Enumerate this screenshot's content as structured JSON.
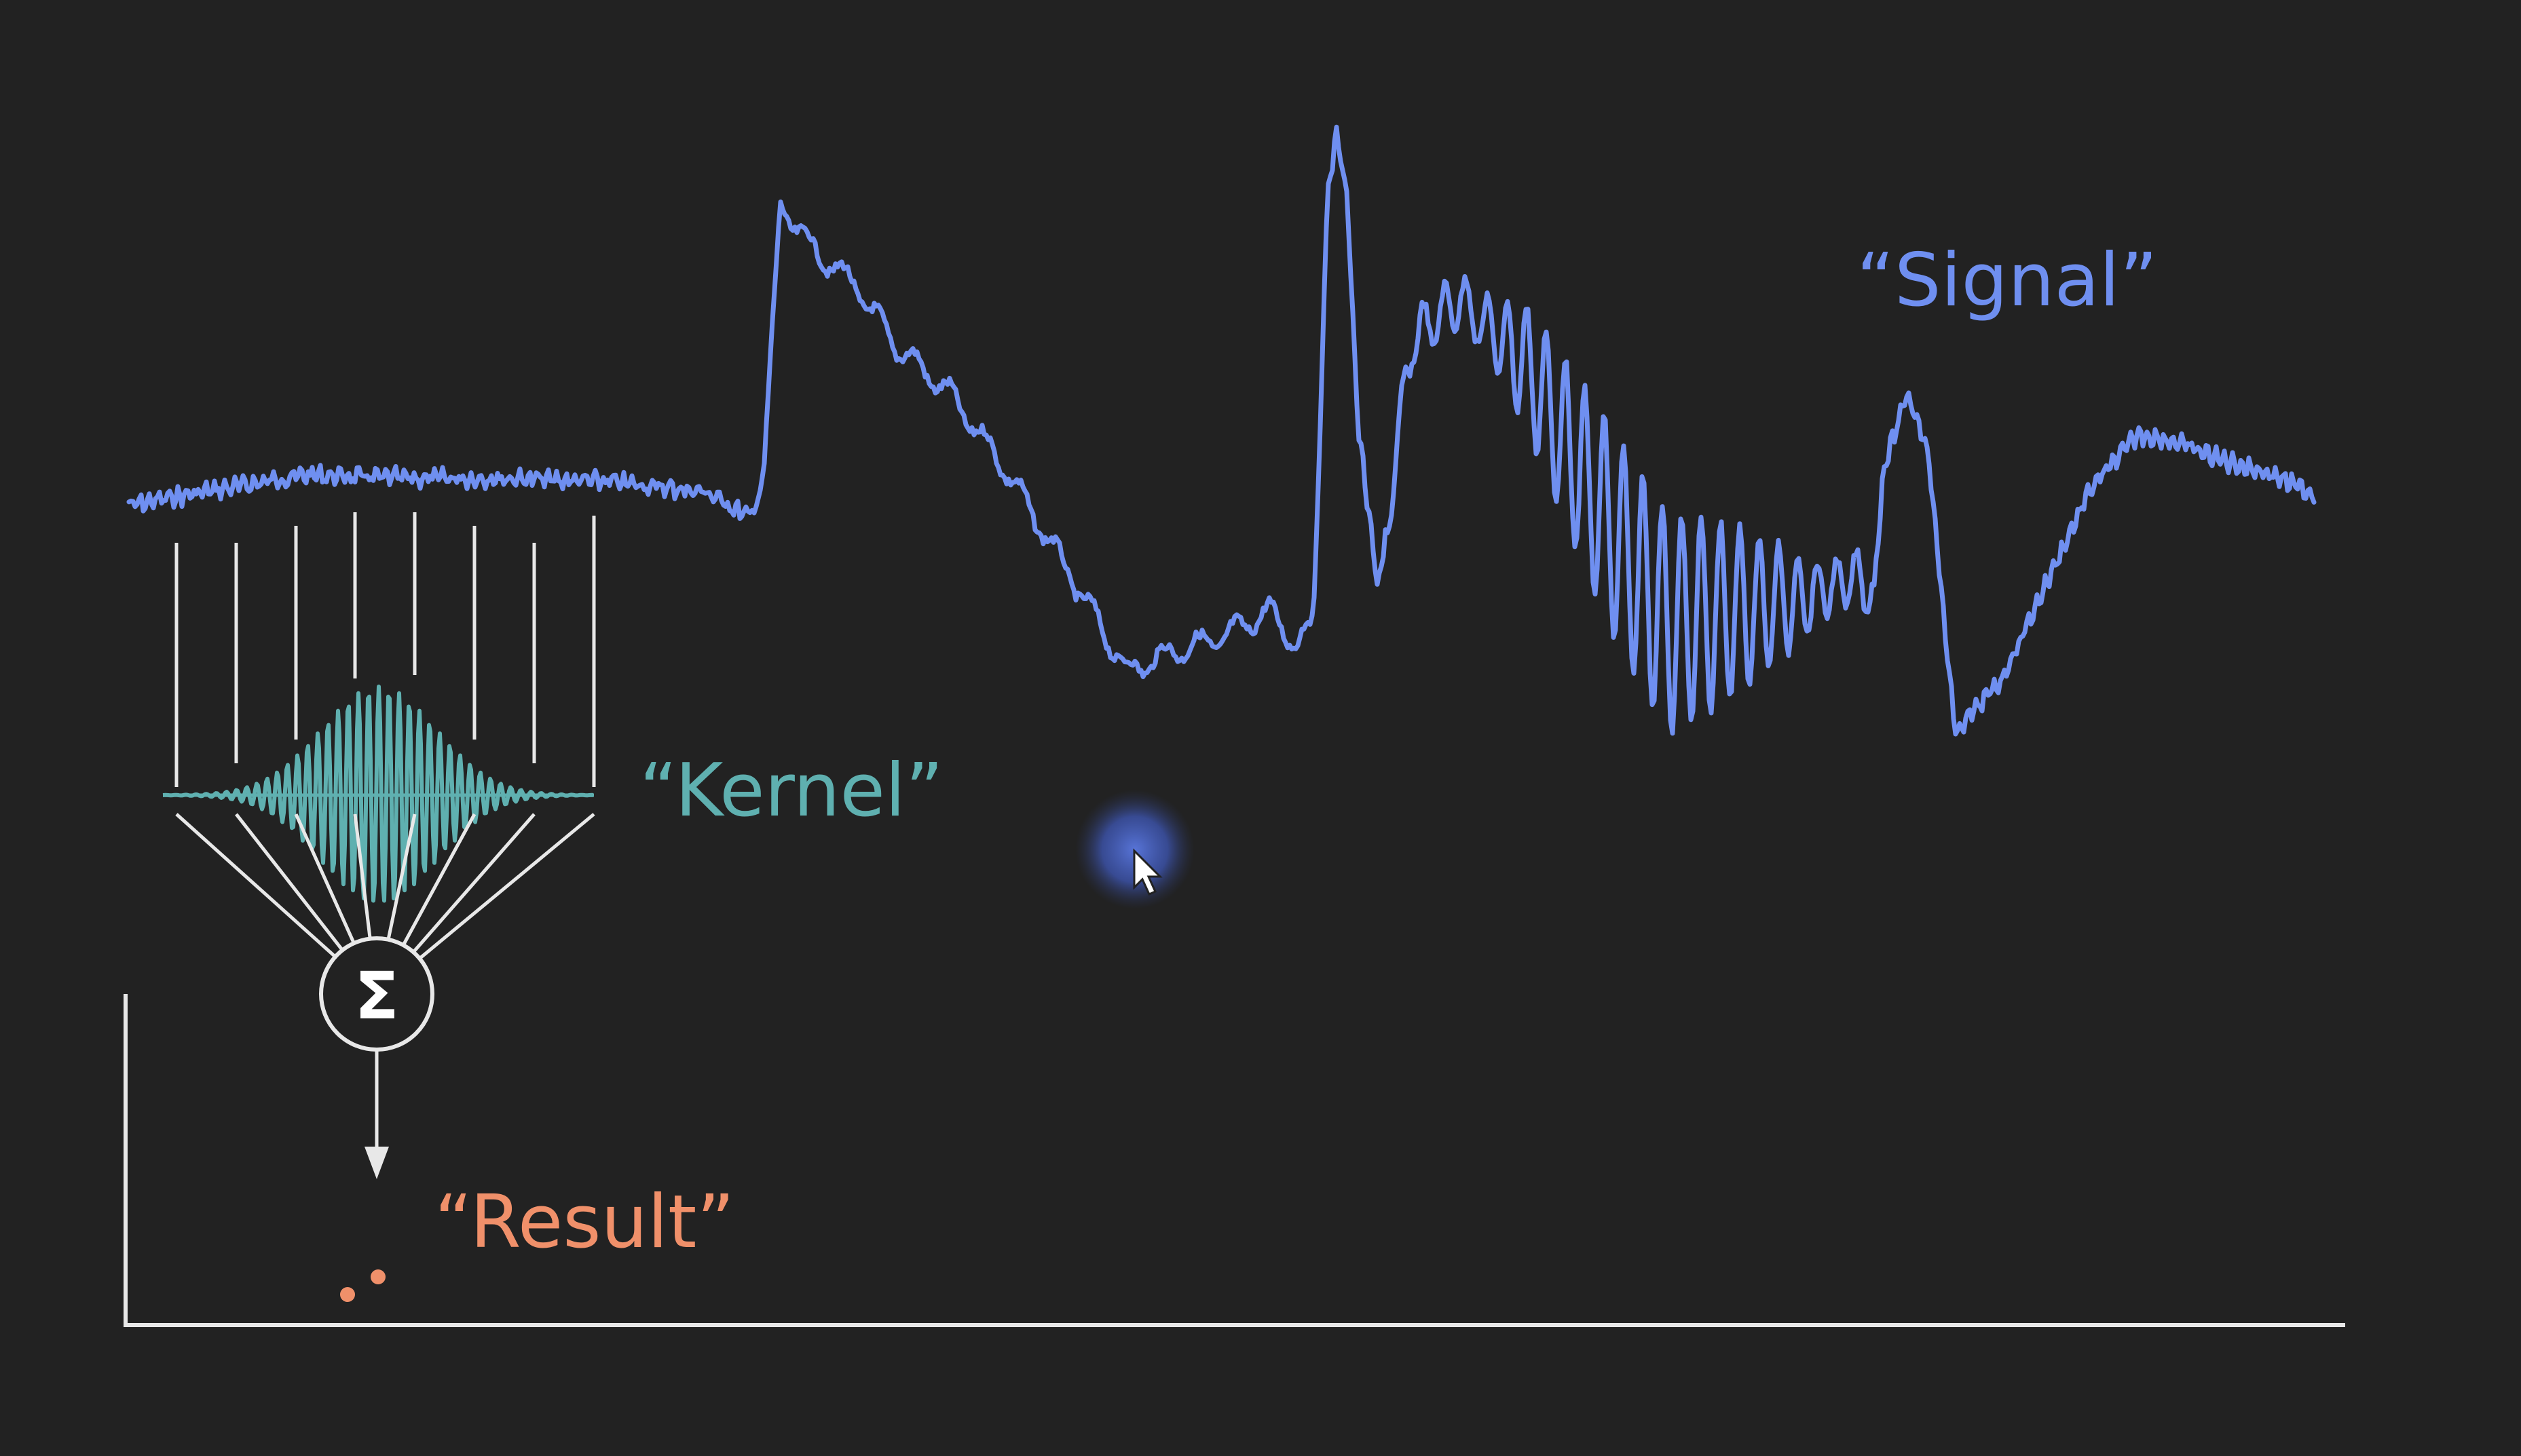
{
  "labels": {
    "signal": "“Signal”",
    "kernel": "“Kernel”",
    "result": "“Result”",
    "sum_symbol": "Σ"
  },
  "colors": {
    "background": "#222222",
    "signal": "#6f8ff0",
    "kernel": "#5fb0b0",
    "result": "#f0906a",
    "lines": "#e8e8e8",
    "cursor_halo": "#4a63c9"
  },
  "icons": {
    "cursor": "mouse-pointer-icon",
    "sum": "summation-icon"
  }
}
